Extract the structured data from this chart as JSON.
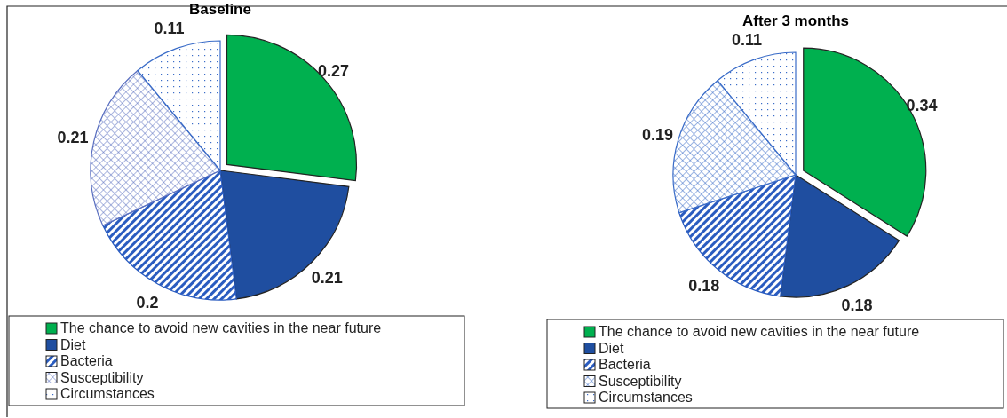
{
  "chart_data": [
    {
      "type": "pie",
      "title": "Baseline",
      "categories": [
        "The chance to avoid new cavities in the near future",
        "Diet",
        "Bacteria",
        "Susceptibility",
        "Circumstances"
      ],
      "values": [
        0.27,
        0.21,
        0.2,
        0.21,
        0.11
      ],
      "colors": [
        "#00b04f",
        "#1f4ea0",
        "#2a5cc0",
        "#5a6fc0",
        "#3a6cc8"
      ],
      "data_labels": true,
      "legend": "bottom"
    },
    {
      "type": "pie",
      "title": "After 3 months",
      "categories": [
        "The chance to avoid new cavities in the near future",
        "Diet",
        "Bacteria",
        "Susceptibility",
        "Circumstances"
      ],
      "values": [
        0.34,
        0.18,
        0.18,
        0.19,
        0.11
      ],
      "colors": [
        "#00b04f",
        "#1f4ea0",
        "#2a5cc0",
        "#3a6cc8",
        "#3a6cc8"
      ],
      "data_labels": true,
      "legend": "bottom"
    }
  ]
}
